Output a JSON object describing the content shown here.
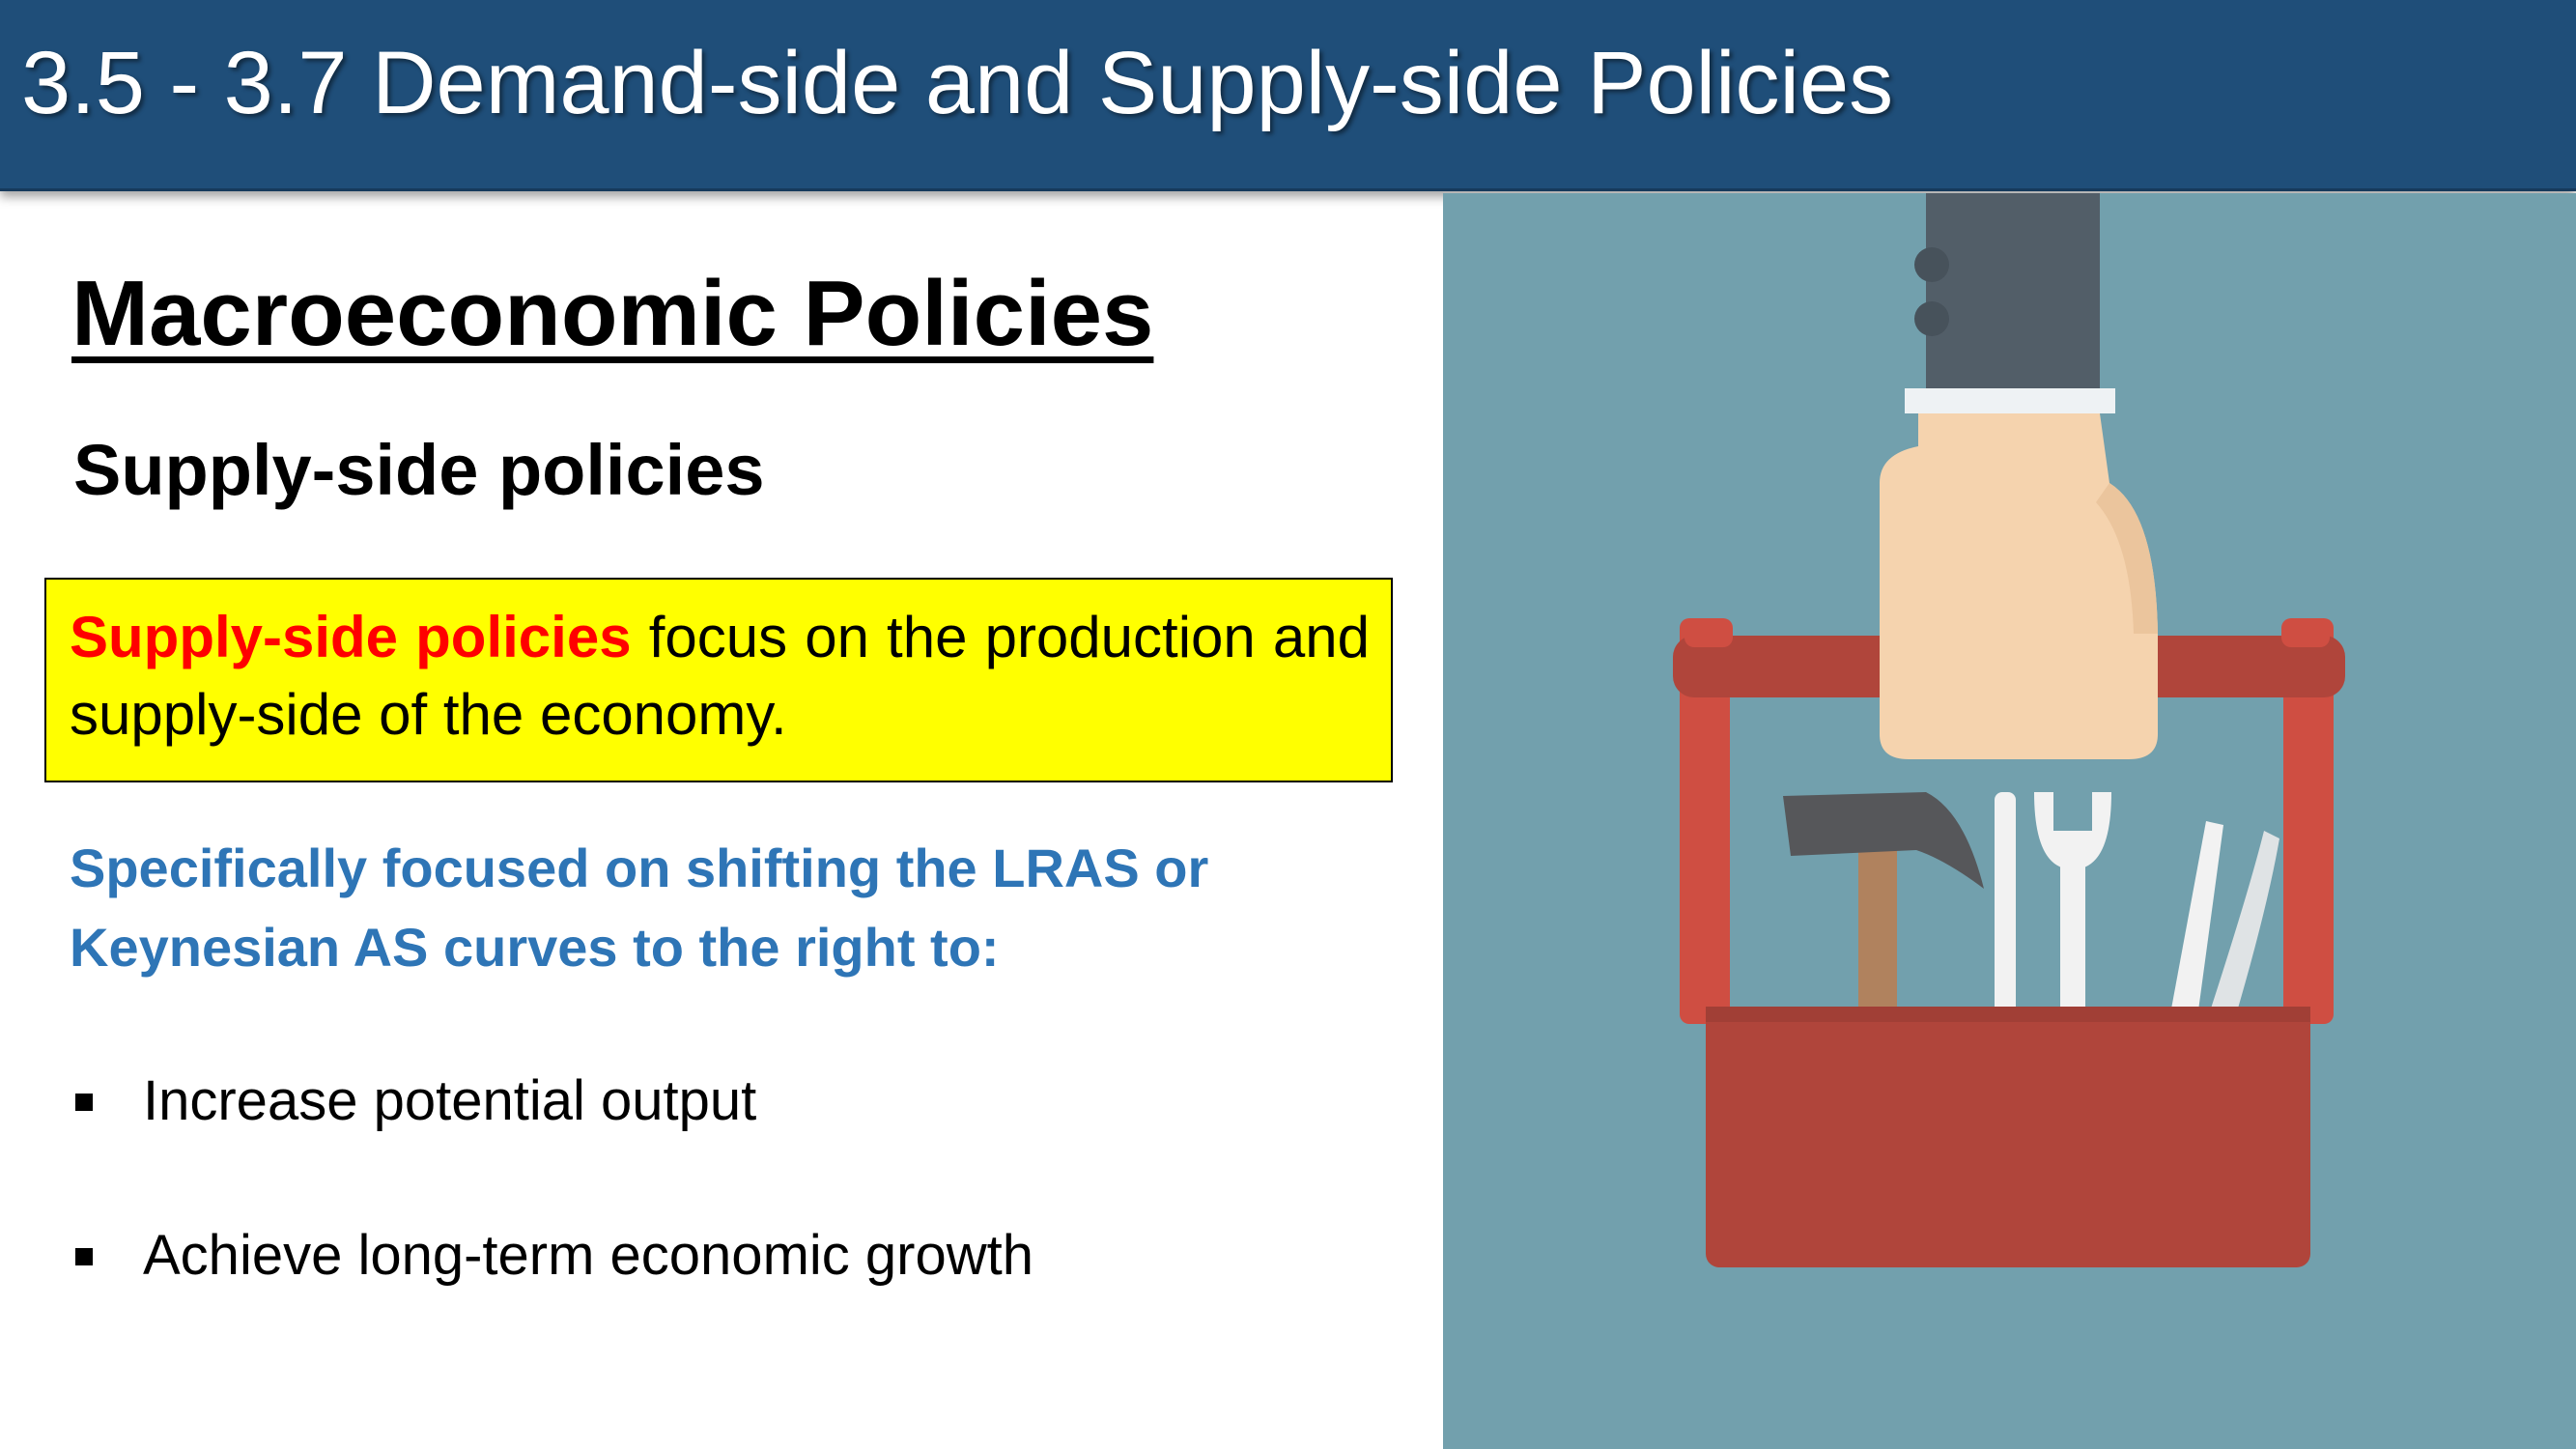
{
  "header": {
    "title": "3.5 - 3.7 Demand-side and Supply-side Policies"
  },
  "content": {
    "section_title": "Macroeconomic Policies",
    "subtitle": "Supply-side policies",
    "definition": {
      "term": "Supply-side policies",
      "text": " focus on the production and supply-side of the economy."
    },
    "focus": "Specifically focused on shifting the LRAS or Keynesian AS curves to the right to:",
    "bullets": [
      "Increase potential output",
      "Achieve long-term economic growth"
    ]
  },
  "illustration": {
    "subject": "hand-holding-toolbox",
    "colors": {
      "background": "#72a0ad",
      "toolbox": "#b0453b",
      "toolbox_highlight": "#cf4e42",
      "sleeve": "#525e68",
      "hand": "#f5d3ae",
      "cuff": "#eef2f4",
      "tools": "#f2f2f2",
      "hammer_head": "#56575a",
      "hammer_handle": "#b0825e"
    }
  }
}
